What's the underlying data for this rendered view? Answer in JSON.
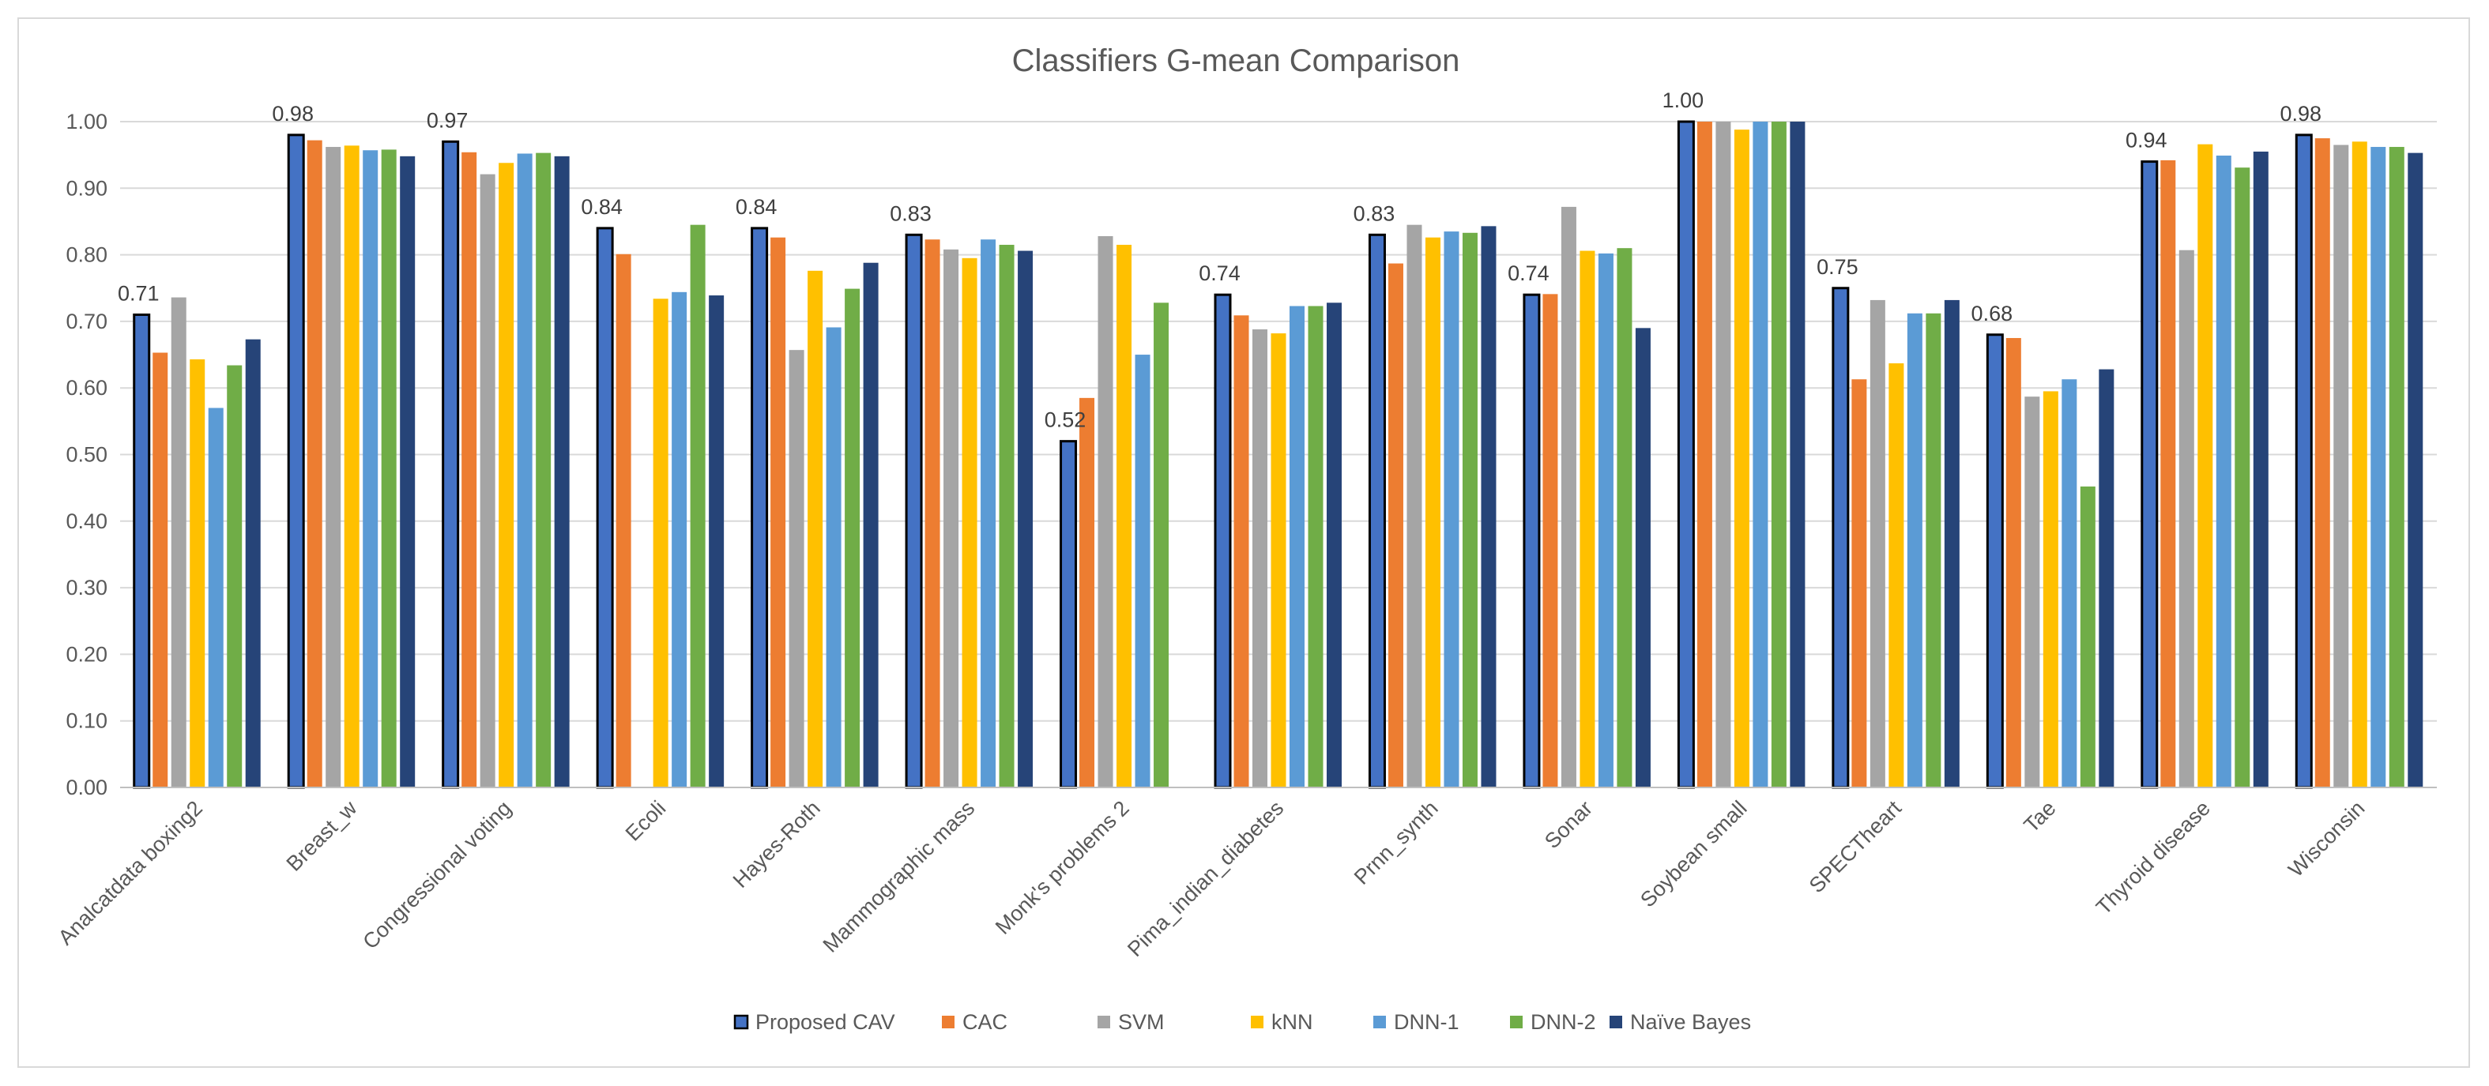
{
  "chart_data": {
    "type": "bar",
    "title": "Classifiers G-mean Comparison",
    "xlabel": "",
    "ylabel": "",
    "ylim": [
      0,
      1.0
    ],
    "yticks": [
      "0.00",
      "0.10",
      "0.20",
      "0.30",
      "0.40",
      "0.50",
      "0.60",
      "0.70",
      "0.80",
      "0.90",
      "1.00"
    ],
    "grid": true,
    "legend_position": "bottom",
    "categories": [
      "Analcatdata boxing2",
      "Breast_w",
      "Congressional voting",
      "Ecoli",
      "Hayes-Roth",
      "Mammographic mass",
      "Monk's problems 2",
      "Pima_indian_diabetes",
      "Prnn_synth",
      "Sonar",
      "Soybean small",
      "SPECTheart",
      "Tae",
      "Thyroid disease",
      "Wisconsin"
    ],
    "series": [
      {
        "name": "Proposed CAV",
        "color": "#4472c4",
        "outlined": true,
        "values": [
          0.71,
          0.98,
          0.97,
          0.84,
          0.84,
          0.83,
          0.52,
          0.74,
          0.83,
          0.74,
          1.0,
          0.75,
          0.68,
          0.94,
          0.98
        ],
        "labels": [
          "0.71",
          "0.98",
          "0.97",
          "0.84",
          "0.84",
          "0.83",
          "0.52",
          "0.74",
          "0.83",
          "0.74",
          "1.00",
          "0.75",
          "0.68",
          "0.94",
          "0.98"
        ]
      },
      {
        "name": "CAC",
        "color": "#ed7d31",
        "values": [
          0.653,
          0.972,
          0.954,
          0.801,
          0.826,
          0.823,
          0.585,
          0.709,
          0.787,
          0.741,
          1.0,
          0.613,
          0.675,
          0.942,
          0.975
        ]
      },
      {
        "name": "SVM",
        "color": "#a5a5a5",
        "values": [
          0.736,
          0.962,
          0.921,
          0.0,
          0.657,
          0.808,
          0.828,
          0.688,
          0.845,
          0.872,
          1.0,
          0.732,
          0.587,
          0.807,
          0.965
        ]
      },
      {
        "name": "kNN",
        "color": "#ffc000",
        "values": [
          0.643,
          0.964,
          0.938,
          0.734,
          0.776,
          0.795,
          0.815,
          0.682,
          0.826,
          0.806,
          0.988,
          0.637,
          0.595,
          0.966,
          0.97
        ]
      },
      {
        "name": "DNN-1",
        "color": "#5b9bd5",
        "values": [
          0.57,
          0.957,
          0.952,
          0.744,
          0.691,
          0.823,
          0.65,
          0.723,
          0.835,
          0.802,
          1.0,
          0.712,
          0.613,
          0.949,
          0.962
        ]
      },
      {
        "name": "DNN-2",
        "color": "#70ad47",
        "values": [
          0.634,
          0.958,
          0.953,
          0.845,
          0.749,
          0.815,
          0.728,
          0.723,
          0.833,
          0.81,
          1.0,
          0.712,
          0.452,
          0.931,
          0.962
        ]
      },
      {
        "name": "Naïve Bayes",
        "color": "#264478",
        "values": [
          0.673,
          0.948,
          0.948,
          0.739,
          0.788,
          0.806,
          0.0,
          0.728,
          0.843,
          0.69,
          1.0,
          0.732,
          0.628,
          0.955,
          0.953
        ]
      }
    ]
  }
}
